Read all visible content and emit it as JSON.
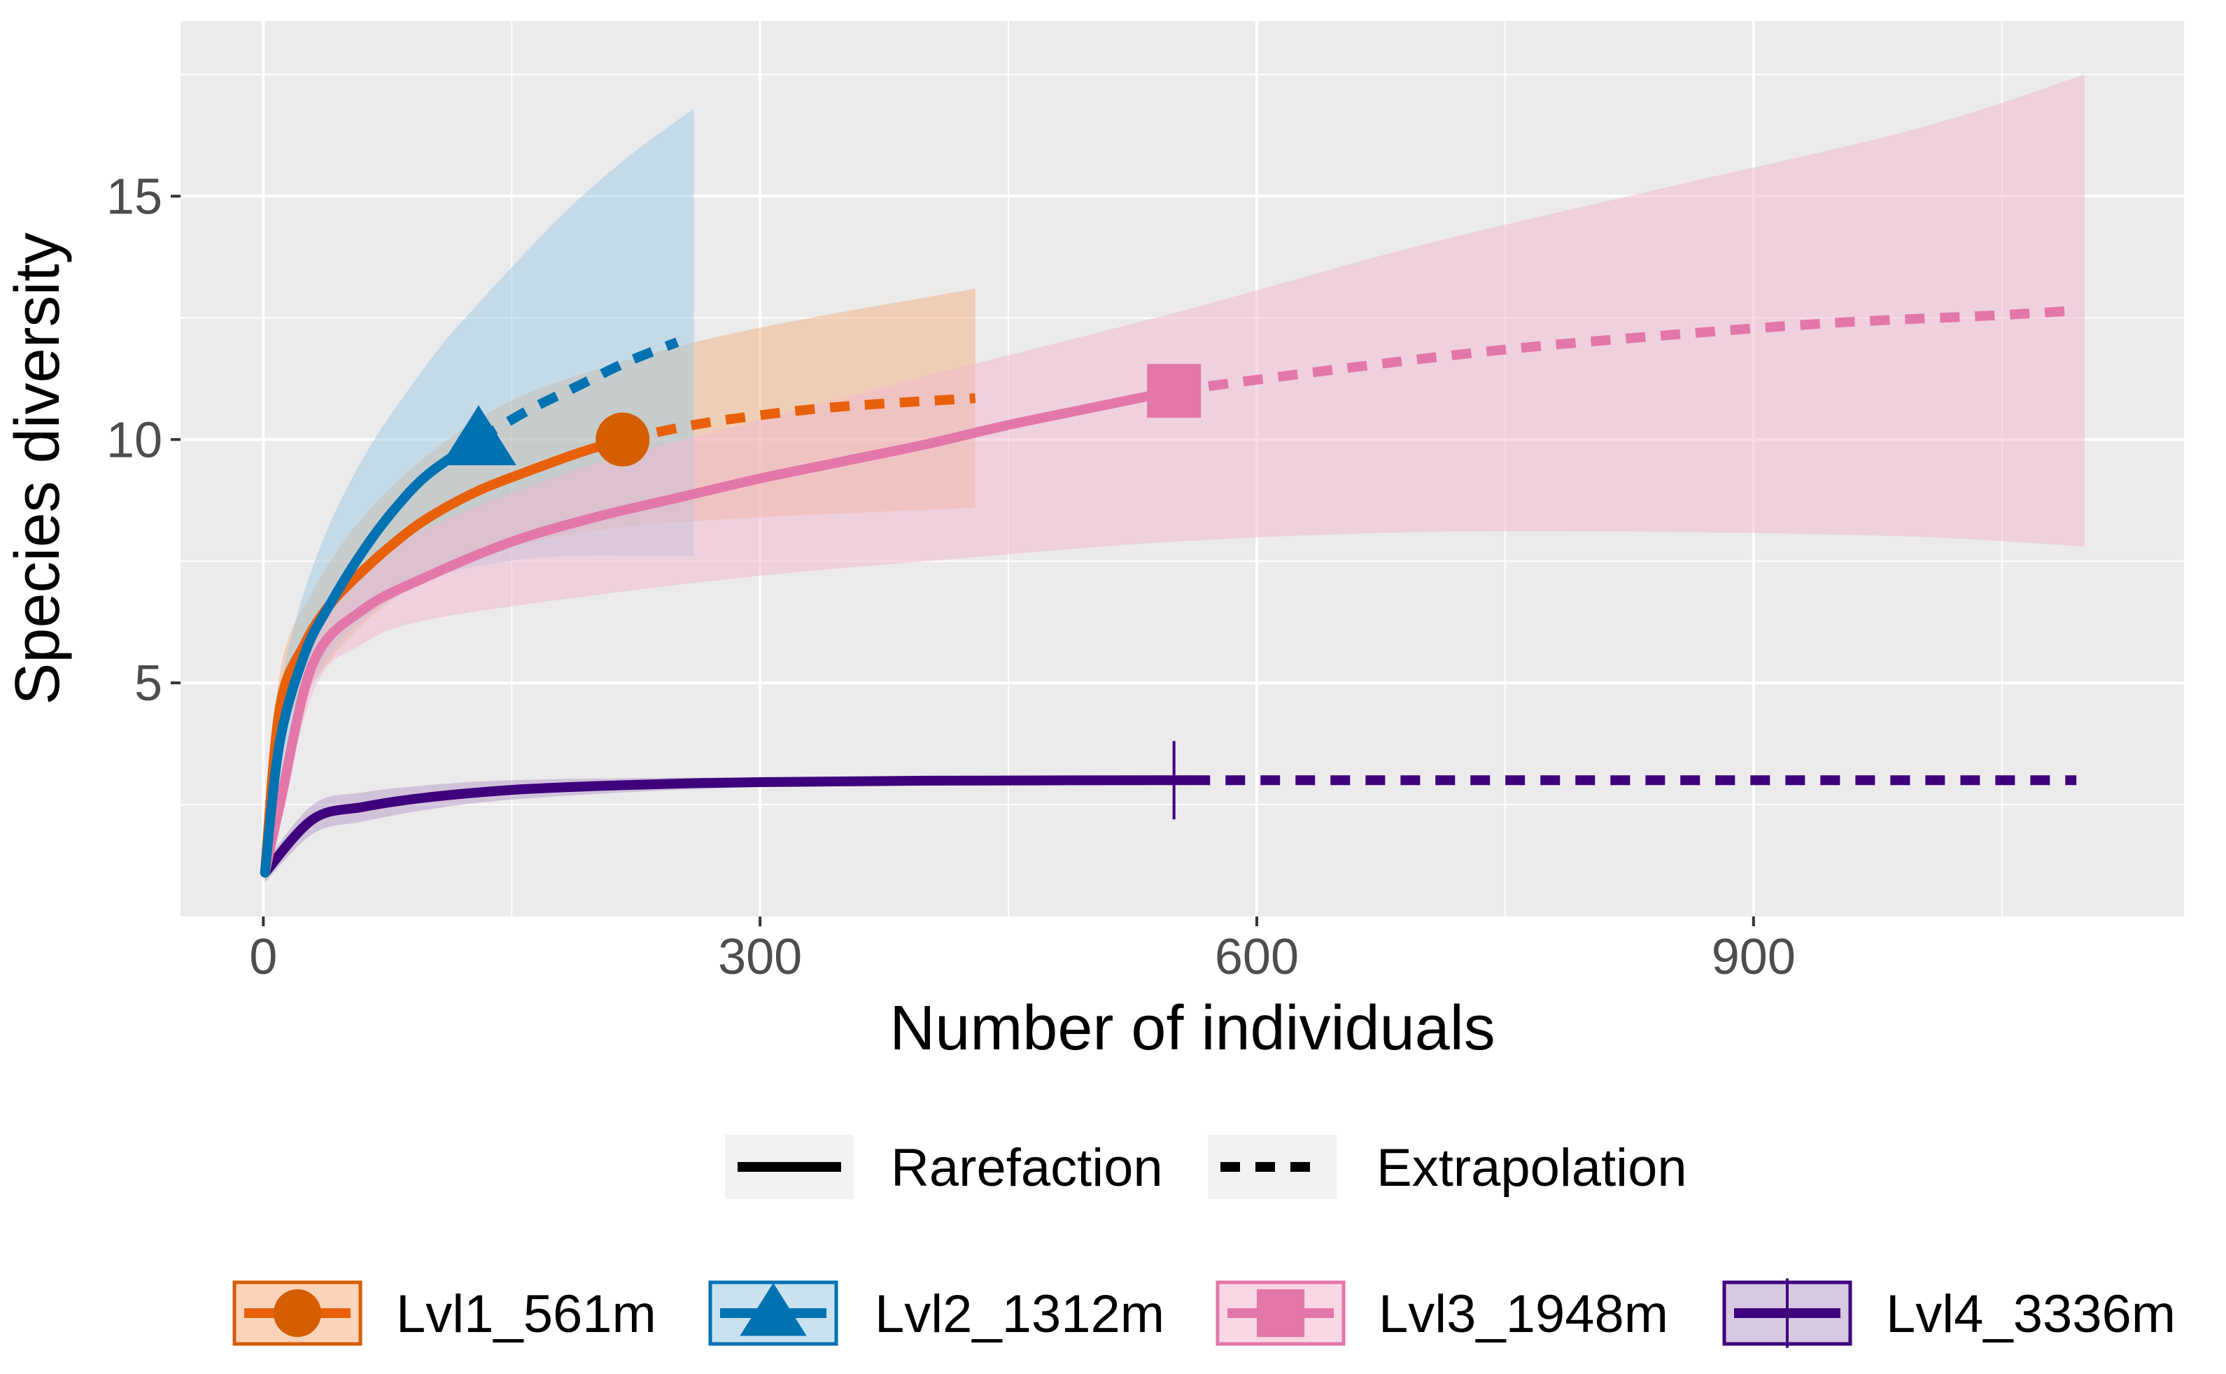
{
  "chart_data": {
    "type": "line",
    "title": "",
    "xlabel": "Number of individuals",
    "ylabel": "Species diversity",
    "xlim": [
      -50,
      1160
    ],
    "ylim": [
      0.2,
      18.6
    ],
    "x_ticks": [
      0,
      300,
      600,
      900
    ],
    "x_tick_labels": [
      "0",
      "300",
      "600",
      "900"
    ],
    "y_ticks": [
      5,
      10,
      15
    ],
    "y_tick_labels": [
      "5",
      "10",
      "15"
    ],
    "grid": true,
    "legend_position": "bottom",
    "linetype_legend": [
      {
        "label": "Rarefaction",
        "style": "solid"
      },
      {
        "label": "Extrapolation",
        "style": "dashed"
      }
    ],
    "series": [
      {
        "name": "Lvl1_561m",
        "color": "#D55E00",
        "line_color": "#E8600A",
        "fill": "#F4B183",
        "marker": "circle",
        "observed": {
          "x": 217,
          "y": 10.0
        },
        "rarefaction": [
          [
            1,
            1.1
          ],
          [
            10,
            4.5
          ],
          [
            25,
            5.8
          ],
          [
            40,
            6.6
          ],
          [
            60,
            7.3
          ],
          [
            80,
            7.9
          ],
          [
            100,
            8.4
          ],
          [
            130,
            8.95
          ],
          [
            160,
            9.35
          ],
          [
            190,
            9.72
          ],
          [
            217,
            10.0
          ]
        ],
        "extrapolation": [
          [
            217,
            10.0
          ],
          [
            260,
            10.3
          ],
          [
            300,
            10.5
          ],
          [
            340,
            10.65
          ],
          [
            380,
            10.75
          ],
          [
            430,
            10.85
          ]
        ],
        "ci_upper": [
          [
            1,
            1.3
          ],
          [
            10,
            5.2
          ],
          [
            30,
            6.9
          ],
          [
            60,
            8.4
          ],
          [
            100,
            9.7
          ],
          [
            150,
            10.8
          ],
          [
            217,
            11.6
          ],
          [
            300,
            12.3
          ],
          [
            430,
            13.1
          ]
        ],
        "ci_lower": [
          [
            1,
            0.9
          ],
          [
            10,
            3.8
          ],
          [
            30,
            5.0
          ],
          [
            60,
            6.2
          ],
          [
            100,
            7.2
          ],
          [
            150,
            7.8
          ],
          [
            217,
            8.2
          ],
          [
            300,
            8.4
          ],
          [
            430,
            8.6
          ]
        ]
      },
      {
        "name": "Lvl2_1312m",
        "color": "#0072B2",
        "line_color": "#0072B2",
        "fill": "#9ECAE1",
        "marker": "triangle",
        "observed": {
          "x": 130,
          "y": 10.0
        },
        "rarefaction": [
          [
            1,
            1.1
          ],
          [
            10,
            3.8
          ],
          [
            25,
            5.6
          ],
          [
            40,
            6.6
          ],
          [
            60,
            7.7
          ],
          [
            80,
            8.6
          ],
          [
            100,
            9.3
          ],
          [
            130,
            10.0
          ]
        ],
        "extrapolation": [
          [
            130,
            10.0
          ],
          [
            160,
            10.6
          ],
          [
            190,
            11.1
          ],
          [
            220,
            11.6
          ],
          [
            250,
            12.0
          ]
        ],
        "ci_upper": [
          [
            1,
            1.3
          ],
          [
            10,
            4.8
          ],
          [
            30,
            7.4
          ],
          [
            60,
            9.6
          ],
          [
            100,
            11.6
          ],
          [
            130,
            12.8
          ],
          [
            180,
            14.6
          ],
          [
            220,
            15.8
          ],
          [
            260,
            16.8
          ]
        ],
        "ci_lower": [
          [
            1,
            0.9
          ],
          [
            10,
            3.0
          ],
          [
            30,
            5.0
          ],
          [
            60,
            6.3
          ],
          [
            100,
            7.1
          ],
          [
            130,
            7.4
          ],
          [
            180,
            7.6
          ],
          [
            260,
            7.6
          ]
        ]
      },
      {
        "name": "Lvl3_1948m",
        "color": "#E377A9",
        "line_color": "#E377A9",
        "fill": "#F2B8CF",
        "marker": "square",
        "observed": {
          "x": 550,
          "y": 11.0
        },
        "rarefaction": [
          [
            1,
            1.1
          ],
          [
            10,
            2.5
          ],
          [
            30,
            5.4
          ],
          [
            60,
            6.5
          ],
          [
            100,
            7.2
          ],
          [
            150,
            7.9
          ],
          [
            200,
            8.4
          ],
          [
            250,
            8.8
          ],
          [
            300,
            9.2
          ],
          [
            350,
            9.55
          ],
          [
            400,
            9.9
          ],
          [
            450,
            10.3
          ],
          [
            500,
            10.65
          ],
          [
            550,
            11.0
          ]
        ],
        "extrapolation": [
          [
            550,
            11.0
          ],
          [
            650,
            11.45
          ],
          [
            750,
            11.85
          ],
          [
            850,
            12.15
          ],
          [
            950,
            12.4
          ],
          [
            1045,
            12.55
          ],
          [
            1095,
            12.65
          ]
        ],
        "ci_upper": [
          [
            1,
            1.3
          ],
          [
            30,
            6.0
          ],
          [
            60,
            7.3
          ],
          [
            100,
            8.2
          ],
          [
            200,
            9.5
          ],
          [
            300,
            10.4
          ],
          [
            400,
            11.3
          ],
          [
            550,
            12.6
          ],
          [
            700,
            14.0
          ],
          [
            850,
            15.2
          ],
          [
            1000,
            16.4
          ],
          [
            1100,
            17.5
          ]
        ],
        "ci_lower": [
          [
            1,
            0.9
          ],
          [
            30,
            4.8
          ],
          [
            60,
            5.8
          ],
          [
            100,
            6.3
          ],
          [
            200,
            6.8
          ],
          [
            300,
            7.2
          ],
          [
            400,
            7.5
          ],
          [
            550,
            7.9
          ],
          [
            700,
            8.1
          ],
          [
            850,
            8.1
          ],
          [
            1000,
            8.0
          ],
          [
            1100,
            7.8
          ]
        ]
      },
      {
        "name": "Lvl4_3336m",
        "color": "#3F007D",
        "line_color": "#3F007D",
        "fill": "#B59CC7",
        "marker": "cross",
        "observed": {
          "x": 550,
          "y": 3.0
        },
        "rarefaction": [
          [
            1,
            1.1
          ],
          [
            30,
            2.2
          ],
          [
            60,
            2.45
          ],
          [
            100,
            2.65
          ],
          [
            150,
            2.8
          ],
          [
            200,
            2.88
          ],
          [
            250,
            2.93
          ],
          [
            300,
            2.96
          ],
          [
            400,
            2.99
          ],
          [
            560,
            3.0
          ]
        ],
        "extrapolation": [
          [
            560,
            3.0
          ],
          [
            700,
            3.0
          ],
          [
            850,
            3.0
          ],
          [
            1000,
            3.0
          ],
          [
            1095,
            3.0
          ]
        ],
        "ci_upper": [
          [
            1,
            1.3
          ],
          [
            30,
            2.5
          ],
          [
            60,
            2.75
          ],
          [
            100,
            2.9
          ],
          [
            150,
            3.0
          ],
          [
            250,
            3.05
          ],
          [
            400,
            3.05
          ],
          [
            550,
            3.02
          ]
        ],
        "ci_lower": [
          [
            1,
            0.9
          ],
          [
            30,
            1.9
          ],
          [
            60,
            2.15
          ],
          [
            100,
            2.4
          ],
          [
            150,
            2.6
          ],
          [
            250,
            2.8
          ],
          [
            400,
            2.95
          ],
          [
            550,
            2.98
          ]
        ]
      }
    ]
  }
}
